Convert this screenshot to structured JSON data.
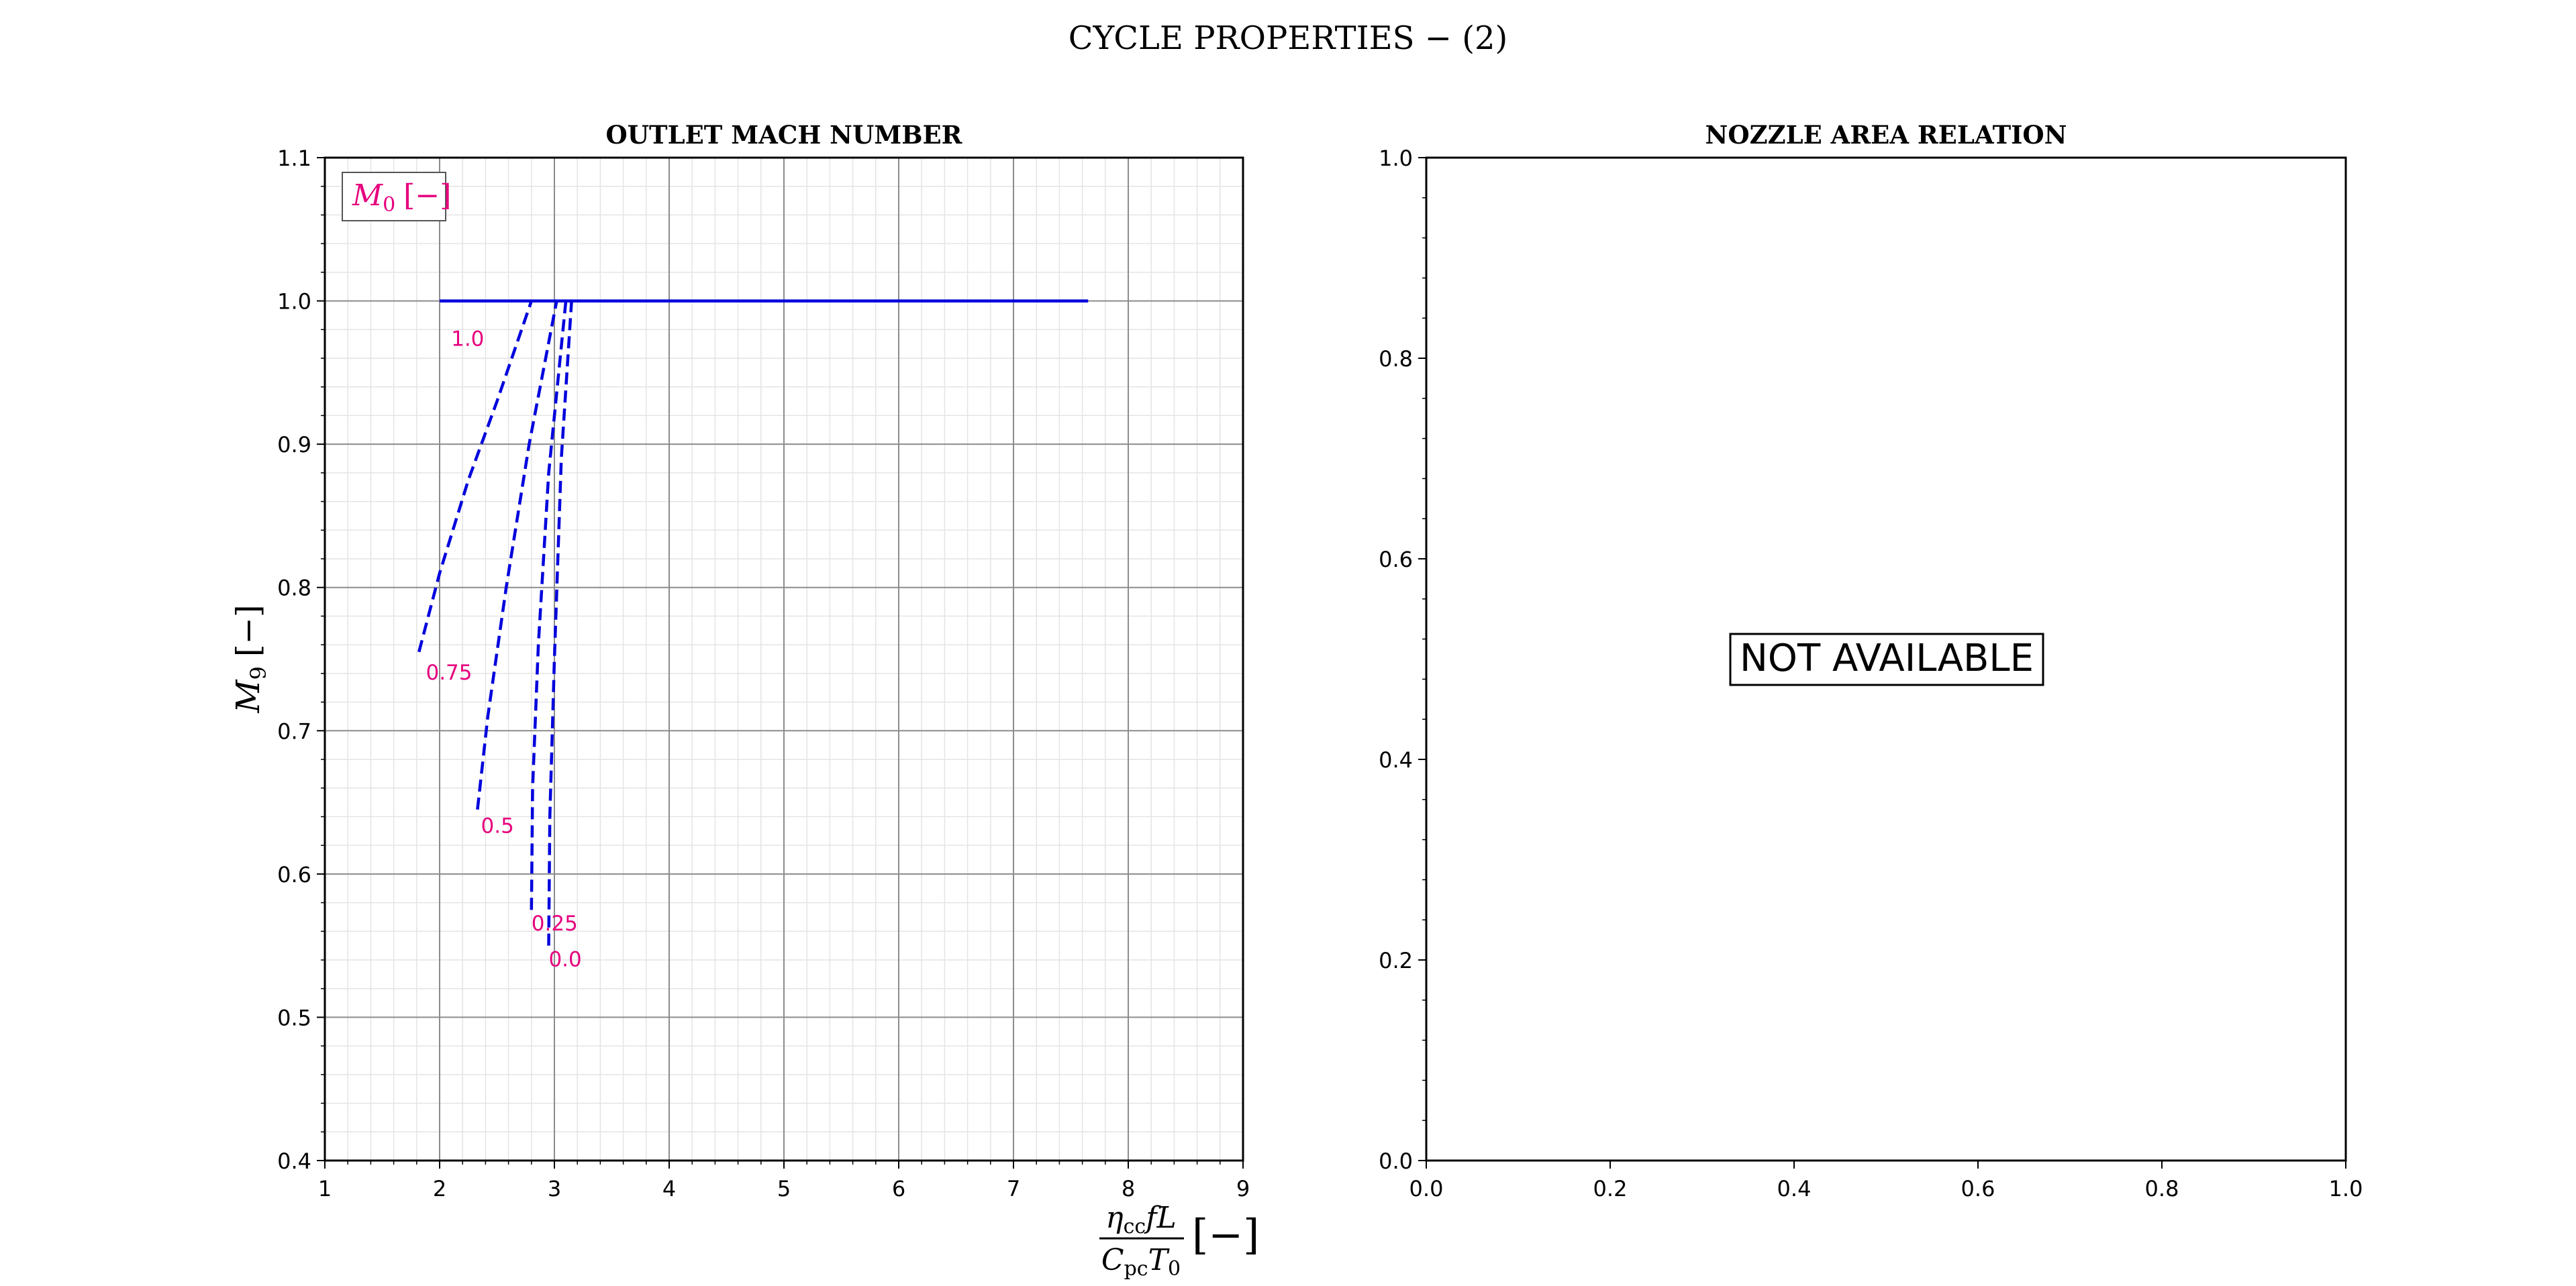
{
  "figure_title": "CYCLE PROPERTIES  − (2)",
  "chart_data": [
    {
      "type": "line",
      "title": "OUTLET MACH NUMBER",
      "ylabel": {
        "symbol": "M",
        "sub": "9",
        "unit": "[−]"
      },
      "xlabel": {
        "num_eta": "η",
        "num_eta_sub": "cc",
        "num_rest": "fL",
        "den_c": "C",
        "den_c_sub": "pc",
        "den_t": "T",
        "den_t_sub": "0",
        "unit": "[−]"
      },
      "xlim": [
        1,
        9
      ],
      "ylim": [
        0.4,
        1.1
      ],
      "x_ticks": [
        1,
        2,
        3,
        4,
        5,
        6,
        7,
        8,
        9
      ],
      "x_tick_labels": [
        "1",
        "2",
        "3",
        "4",
        "5",
        "6",
        "7",
        "8",
        "9"
      ],
      "y_ticks": [
        0.4,
        0.5,
        0.6,
        0.7,
        0.8,
        0.9,
        1.0,
        1.1
      ],
      "y_tick_labels": [
        "0.4",
        "0.5",
        "0.6",
        "0.7",
        "0.8",
        "0.9",
        "1.0",
        "1.1"
      ],
      "grid": "major and minor",
      "legend": {
        "symbol": "M",
        "sub": "0",
        "unit": "[−]",
        "placement": "top-left",
        "color": "#e6007e"
      },
      "line_color": "#0000dd",
      "label_color": "#e6007e",
      "series": [
        {
          "label": "1.0",
          "style": "solid",
          "x": [
            2.0,
            3.0,
            4.0,
            5.0,
            6.0,
            7.0,
            7.65
          ],
          "y": [
            1.0,
            1.0,
            1.0,
            1.0,
            1.0,
            1.0,
            1.0
          ],
          "label_at": [
            2.1,
            0.978
          ]
        },
        {
          "label": "0.75",
          "style": "dashed",
          "x": [
            1.82,
            2.0,
            2.25,
            2.5,
            2.8
          ],
          "y": [
            0.755,
            0.81,
            0.875,
            0.93,
            1.0
          ],
          "label_at": [
            1.88,
            0.745
          ]
        },
        {
          "label": "0.5",
          "style": "dashed",
          "x": [
            2.33,
            2.42,
            2.58,
            2.78,
            3.02
          ],
          "y": [
            0.645,
            0.71,
            0.8,
            0.9,
            1.0
          ],
          "label_at": [
            2.36,
            0.638
          ]
        },
        {
          "label": "0.25",
          "style": "dashed",
          "x": [
            2.8,
            2.81,
            2.86,
            2.95,
            3.1
          ],
          "y": [
            0.575,
            0.66,
            0.76,
            0.88,
            1.0
          ],
          "label_at": [
            2.8,
            0.57
          ]
        },
        {
          "label": "0.0",
          "style": "dashed",
          "x": [
            2.95,
            2.96,
            3.0,
            3.06,
            3.15
          ],
          "y": [
            0.55,
            0.64,
            0.75,
            0.89,
            1.0
          ],
          "label_at": [
            2.95,
            0.545
          ]
        }
      ]
    },
    {
      "type": "line",
      "title": "NOZZLE AREA RELATION",
      "xlim": [
        0.0,
        1.0
      ],
      "ylim": [
        0.0,
        1.0
      ],
      "x_ticks": [
        0.0,
        0.2,
        0.4,
        0.6,
        0.8,
        1.0
      ],
      "x_tick_labels": [
        "0.0",
        "0.2",
        "0.4",
        "0.6",
        "0.8",
        "1.0"
      ],
      "y_ticks": [
        0.0,
        0.2,
        0.4,
        0.6,
        0.8,
        1.0
      ],
      "y_tick_labels": [
        "0.0",
        "0.2",
        "0.4",
        "0.6",
        "0.8",
        "1.0"
      ],
      "grid": "off",
      "annotation": "NOT AVAILABLE",
      "series": []
    }
  ]
}
